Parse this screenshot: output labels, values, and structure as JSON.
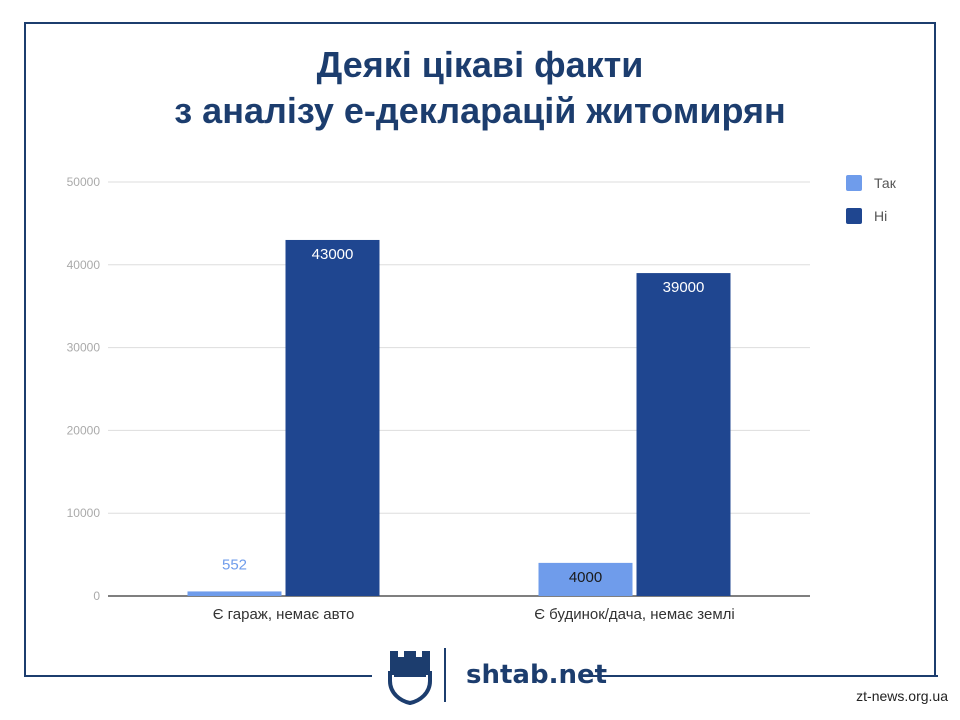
{
  "title": {
    "line1": "Деякі цікаві факти",
    "line2": "з аналізу е-декларацій житомирян"
  },
  "chart_data": {
    "type": "bar",
    "title": "Деякі цікаві факти з аналізу е-декларацій житомирян",
    "categories": [
      "Є гараж, немає авто",
      "Є будинок/дача, немає землі"
    ],
    "series": [
      {
        "name": "Так",
        "values": [
          552,
          4000
        ],
        "labels": [
          "552",
          "4000"
        ],
        "color": "#6f9ceb"
      },
      {
        "name": "Ні",
        "values": [
          43000,
          39000
        ],
        "labels": [
          "43000",
          "39000"
        ],
        "color": "#1f4690"
      }
    ],
    "ylim": [
      0,
      50000
    ],
    "yticks": [
      0,
      10000,
      20000,
      30000,
      40000,
      50000
    ],
    "ytick_labels": [
      "0",
      "10000",
      "20000",
      "30000",
      "40000",
      "50000"
    ],
    "xlabel": "",
    "ylabel": "",
    "grid": true,
    "legend": "right"
  },
  "logo": {
    "text": "shtab.net",
    "icon": "castle-shield-icon"
  },
  "watermark": "zt-news.org.ua",
  "colors": {
    "brand": "#1c3d6e",
    "gridline": "#dddddd"
  }
}
